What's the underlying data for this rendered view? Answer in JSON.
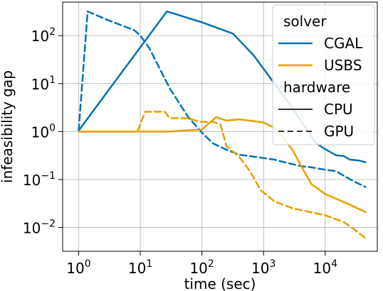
{
  "chart_data": {
    "type": "line",
    "xlabel": "time (sec)",
    "ylabel": "infeasibility gap",
    "xscale": "log",
    "yscale": "log",
    "xlim": [
      0.55,
      70000
    ],
    "ylim": [
      0.0032,
      500
    ],
    "grid": true,
    "x_ticks": [
      {
        "base": "10",
        "exp": "0",
        "value": 1
      },
      {
        "base": "10",
        "exp": "1",
        "value": 10
      },
      {
        "base": "10",
        "exp": "2",
        "value": 100
      },
      {
        "base": "10",
        "exp": "3",
        "value": 1000
      },
      {
        "base": "10",
        "exp": "4",
        "value": 10000
      }
    ],
    "y_ticks": [
      {
        "base": "10",
        "exp": "−2",
        "value": 0.01
      },
      {
        "base": "10",
        "exp": "−1",
        "value": 0.1
      },
      {
        "base": "10",
        "exp": "0",
        "value": 1
      },
      {
        "base": "10",
        "exp": "1",
        "value": 10
      },
      {
        "base": "10",
        "exp": "2",
        "value": 100
      }
    ],
    "legend": {
      "placement": "top-right",
      "title_solver": "solver",
      "title_hardware": "hardware",
      "solver_entries": [
        {
          "label": "CGAL",
          "color": "#0072b2"
        },
        {
          "label": "USBS",
          "color": "#e69f00"
        }
      ],
      "hardware_entries": [
        {
          "label": "CPU",
          "dash": "solid"
        },
        {
          "label": "GPU",
          "dash": "dashed"
        }
      ]
    },
    "series": [
      {
        "solver": "CGAL",
        "hardware": "CPU",
        "color": "#0072b2",
        "dash": "solid",
        "points": [
          [
            1,
            1.05
          ],
          [
            27,
            320
          ],
          [
            100,
            190
          ],
          [
            320,
            110
          ],
          [
            700,
            38
          ],
          [
            1500,
            10
          ],
          [
            3000,
            3.0
          ],
          [
            5000,
            1.1
          ],
          [
            7000,
            0.58
          ],
          [
            10000,
            0.43
          ],
          [
            15000,
            0.32
          ],
          [
            20000,
            0.31
          ],
          [
            25000,
            0.26
          ],
          [
            35000,
            0.25
          ],
          [
            45000,
            0.23
          ]
        ]
      },
      {
        "solver": "CGAL",
        "hardware": "GPU",
        "color": "#0072b2",
        "dash": "dashed",
        "points": [
          [
            1,
            1.05
          ],
          [
            1.4,
            320
          ],
          [
            3,
            210
          ],
          [
            8,
            130
          ],
          [
            10,
            100
          ],
          [
            14,
            55
          ],
          [
            30,
            8
          ],
          [
            60,
            2.0
          ],
          [
            100,
            0.95
          ],
          [
            150,
            0.57
          ],
          [
            250,
            0.42
          ],
          [
            400,
            0.33
          ],
          [
            700,
            0.3
          ],
          [
            1500,
            0.26
          ],
          [
            2500,
            0.22
          ],
          [
            4000,
            0.19
          ],
          [
            6000,
            0.18
          ],
          [
            10000,
            0.16
          ],
          [
            15000,
            0.15
          ],
          [
            20000,
            0.12
          ],
          [
            30000,
            0.09
          ],
          [
            45000,
            0.07
          ]
        ]
      },
      {
        "solver": "USBS",
        "hardware": "CPU",
        "color": "#e69f00",
        "dash": "solid",
        "points": [
          [
            1,
            1.0
          ],
          [
            10,
            1.0
          ],
          [
            30,
            1.0
          ],
          [
            50,
            1.05
          ],
          [
            100,
            1.1
          ],
          [
            170,
            2.0
          ],
          [
            250,
            1.7
          ],
          [
            400,
            1.8
          ],
          [
            700,
            1.65
          ],
          [
            1000,
            1.55
          ],
          [
            1500,
            1.2
          ],
          [
            2000,
            0.8
          ],
          [
            3000,
            0.4
          ],
          [
            4000,
            0.2
          ],
          [
            6000,
            0.08
          ],
          [
            10000,
            0.05
          ],
          [
            15000,
            0.04
          ],
          [
            25000,
            0.03
          ],
          [
            45000,
            0.021
          ]
        ]
      },
      {
        "solver": "USBS",
        "hardware": "GPU",
        "color": "#e69f00",
        "dash": "dashed",
        "points": [
          [
            1,
            1.0
          ],
          [
            9,
            1.0
          ],
          [
            12,
            2.6
          ],
          [
            25,
            2.6
          ],
          [
            30,
            1.9
          ],
          [
            60,
            1.9
          ],
          [
            90,
            1.6
          ],
          [
            150,
            1.6
          ],
          [
            200,
            1.4
          ],
          [
            250,
            0.5
          ],
          [
            400,
            0.3
          ],
          [
            600,
            0.15
          ],
          [
            900,
            0.06
          ],
          [
            1500,
            0.035
          ],
          [
            3000,
            0.025
          ],
          [
            10000,
            0.018
          ],
          [
            20000,
            0.013
          ],
          [
            30000,
            0.009
          ],
          [
            45000,
            0.006
          ]
        ]
      }
    ]
  }
}
